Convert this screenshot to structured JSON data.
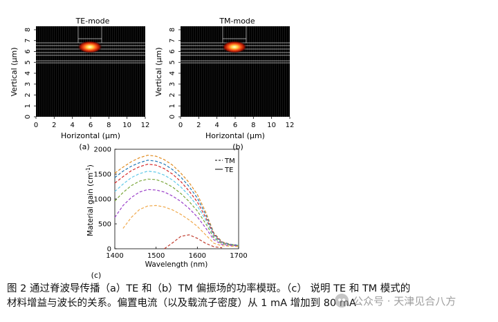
{
  "panels": [
    {
      "title": "TE-mode",
      "tag": "(a)",
      "xlabel": "Horizontal (µm)",
      "ylabel": "Vertical (µm)",
      "xticks": [
        "0",
        "2",
        "4",
        "6",
        "8",
        "10",
        "12"
      ],
      "yticks": [
        "0",
        "1",
        "2",
        "3",
        "4",
        "5",
        "6",
        "7",
        "8"
      ],
      "spot": {
        "x": 6.6,
        "y": 6.4
      }
    },
    {
      "title": "TM-mode",
      "tag": "(b)",
      "xlabel": "Horizontal (µm)",
      "ylabel": "Vertical (µm)",
      "xticks": [
        "0",
        "2",
        "4",
        "6",
        "8",
        "10",
        "12"
      ],
      "yticks": [
        "0",
        "1",
        "2",
        "3",
        "4",
        "5",
        "6",
        "7",
        "8"
      ],
      "spot": {
        "x": 6.6,
        "y": 6.4
      }
    }
  ],
  "chart_data": {
    "type": "line",
    "tag": "(c)",
    "xlabel": "Wavelength (nm)",
    "ylabel_main": "Material gain (cm",
    "ylabel_sup": "-1",
    "ylabel_end": ")",
    "xlim": [
      1400,
      1700
    ],
    "ylim": [
      0,
      2000
    ],
    "xticks": [
      "1400",
      "1500",
      "1600",
      "1700"
    ],
    "yticks": [
      "0",
      "500",
      "1000",
      "1500",
      "2000"
    ],
    "legend": [
      {
        "label": "TM",
        "dash": "dashed"
      },
      {
        "label": "TE",
        "dash": "solid"
      }
    ],
    "legend_position": "top-right",
    "x": [
      1400,
      1420,
      1440,
      1460,
      1480,
      1500,
      1520,
      1540,
      1560,
      1580,
      1600,
      1620,
      1640,
      1660,
      1680,
      1700
    ],
    "series": [
      {
        "color": "#e08a1e",
        "values": [
          1520,
          1640,
          1750,
          1830,
          1880,
          1860,
          1790,
          1680,
          1520,
          1330,
          1090,
          740,
          320,
          140,
          90,
          70
        ]
      },
      {
        "color": "#1f77b4",
        "values": [
          1430,
          1560,
          1660,
          1730,
          1780,
          1760,
          1700,
          1590,
          1440,
          1250,
          1020,
          690,
          300,
          130,
          90,
          70
        ]
      },
      {
        "color": "#d62728",
        "values": [
          1320,
          1450,
          1570,
          1650,
          1700,
          1680,
          1610,
          1500,
          1350,
          1160,
          940,
          630,
          280,
          120,
          85,
          65
        ]
      },
      {
        "color": "#5ec8e8",
        "values": [
          1150,
          1300,
          1430,
          1510,
          1560,
          1540,
          1480,
          1380,
          1240,
          1070,
          860,
          580,
          250,
          110,
          80,
          65
        ]
      },
      {
        "color": "#7aa63a",
        "values": [
          960,
          1130,
          1270,
          1360,
          1400,
          1390,
          1330,
          1240,
          1110,
          950,
          760,
          510,
          220,
          100,
          75,
          60
        ]
      },
      {
        "color": "#9a3fc9",
        "values": [
          630,
          870,
          1030,
          1140,
          1190,
          1180,
          1140,
          1060,
          950,
          810,
          640,
          420,
          180,
          85,
          65,
          55
        ]
      },
      {
        "color": "#f0a84a",
        "values": [
          null,
          410,
          630,
          790,
          860,
          870,
          840,
          780,
          690,
          580,
          450,
          280,
          110,
          60,
          50,
          45
        ]
      },
      {
        "color": "#c0392b",
        "values": [
          null,
          null,
          null,
          null,
          null,
          null,
          0,
          120,
          250,
          280,
          210,
          110,
          40,
          20,
          null,
          null
        ]
      }
    ]
  },
  "caption": {
    "line1": "图 2  通过脊波导传播（a）TE 和（b）TM 偏振场的功率模斑。（c）  说明 TE 和 TM 模式的",
    "line2": "材料增益与波长的关系。偏置电流（以及载流子密度）从 1 mA 增加到 80 mA"
  },
  "watermark": {
    "text": "公众号 · 天津见合八方"
  }
}
